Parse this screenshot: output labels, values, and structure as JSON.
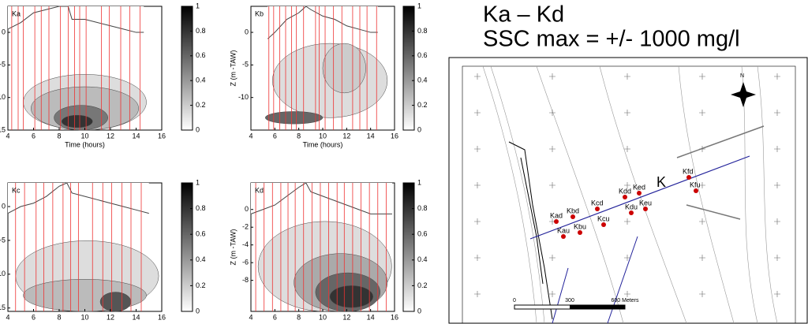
{
  "slide": {
    "title_lines": [
      "Ka – Kd",
      "SSC max = +/- 1000 mg/l"
    ]
  },
  "chart_data": [
    {
      "type": "contour",
      "label": "Ka",
      "xlabel": "Time (hours)",
      "xlim": [
        4,
        16
      ],
      "xticks": [
        4,
        6,
        8,
        10,
        12,
        14,
        16
      ],
      "ylim": [
        -15,
        4
      ],
      "yticks": [
        0,
        -5,
        {
          "value": -10,
          "label": "10"
        },
        {
          "value": -15,
          "label": "15"
        }
      ],
      "colorbar": {
        "lim": [
          0,
          1
        ],
        "ticks": [
          0,
          0.2,
          0.4,
          0.6,
          0.8,
          1
        ]
      },
      "profiles": [
        4.3,
        4.8,
        5.2,
        6.1,
        6.6,
        7.2,
        8.1,
        8.7,
        9.2,
        9.6,
        10.1,
        11.3,
        11.9,
        12.8,
        13.5,
        14.3
      ],
      "surface": {
        "x": [
          4,
          5,
          6,
          7,
          8,
          8.7,
          9,
          10,
          11,
          12,
          13,
          14,
          14.6
        ],
        "y": [
          0.5,
          1.5,
          3,
          3.5,
          4,
          4,
          2,
          2,
          1.5,
          1,
          0.5,
          0,
          0
        ]
      }
    },
    {
      "type": "contour",
      "label": "Kb",
      "ylabel": "Z (m -TAW)",
      "xlabel": "Time (hours)",
      "xlim": [
        4,
        16
      ],
      "xticks": [
        4,
        6,
        8,
        10,
        12,
        14,
        16
      ],
      "ylim": [
        -15,
        4
      ],
      "yticks": [
        0,
        -5,
        -10
      ],
      "colorbar": {
        "lim": [
          0,
          1
        ],
        "ticks": [
          0,
          0.2,
          0.4,
          0.6,
          0.8,
          1
        ]
      },
      "profiles": [
        5.5,
        5.9,
        6.4,
        6.9,
        7.4,
        7.8,
        8.4,
        9.4,
        9.7,
        10.2,
        10.9,
        11.6,
        12.5,
        13.1,
        13.7,
        14.5
      ],
      "surface": {
        "x": [
          5.4,
          6,
          7,
          8,
          8.6,
          9,
          10,
          11,
          12,
          13,
          14,
          14.6
        ],
        "y": [
          -1,
          0,
          2,
          3,
          4,
          3.5,
          2.5,
          2,
          1,
          0.5,
          0,
          0
        ]
      }
    },
    {
      "type": "contour",
      "label": "Kc",
      "xlim": [
        4,
        16
      ],
      "xticks": [
        4,
        6,
        8,
        10,
        12,
        14,
        16
      ],
      "ylim": [
        -15.5,
        3.5
      ],
      "yticks": [
        0,
        -5,
        {
          "value": -10,
          "label": "10"
        },
        {
          "value": -15,
          "label": "15"
        }
      ],
      "colorbar": {
        "lim": [
          0,
          1
        ],
        "ticks": [
          0,
          0.2,
          0.4,
          0.6,
          0.8,
          1
        ]
      },
      "profiles": [
        4.6,
        5.3,
        6.2,
        6.8,
        7.5,
        8.3,
        8.9,
        9.5,
        10.6,
        11.4,
        12.1,
        12.9,
        13.6,
        14.4
      ],
      "surface": {
        "x": [
          4,
          5,
          6,
          7,
          8,
          8.6,
          9,
          10,
          11,
          12,
          13,
          14,
          15
        ],
        "y": [
          -1,
          0,
          0.5,
          1.5,
          3,
          3.5,
          2,
          1.5,
          1,
          0.5,
          0,
          -0.5,
          -1
        ]
      }
    },
    {
      "type": "contour",
      "label": "Kd",
      "ylabel": "Z (m -TAW)",
      "xlim": [
        4,
        16
      ],
      "xticks": [
        4,
        6,
        8,
        10,
        12,
        14,
        16
      ],
      "ylim": [
        -11.5,
        3
      ],
      "yticks": [
        0,
        -2,
        -4,
        -6,
        -8
      ],
      "colorbar": {
        "lim": [
          0,
          1
        ],
        "ticks": [
          0,
          0.2,
          0.4,
          0.6,
          0.8,
          1
        ]
      },
      "profiles": [
        4.4,
        5.1,
        5.8,
        6.5,
        7.1,
        7.7,
        8.4,
        9.1,
        9.8,
        10.5,
        11.2,
        11.8,
        12.5,
        13.2,
        13.9,
        14.6,
        15.3
      ],
      "surface": {
        "x": [
          4,
          5,
          6,
          7,
          8,
          8.6,
          9,
          10,
          11,
          12,
          13,
          14,
          15,
          15.8
        ],
        "y": [
          -0.5,
          0,
          0.5,
          1.5,
          2.5,
          3,
          2,
          1.5,
          1,
          0.5,
          0,
          -0.5,
          -0.5,
          -0.5
        ]
      }
    }
  ],
  "map": {
    "stations": [
      "Kad",
      "Kau",
      "Kbd",
      "Kbu",
      "Kcd",
      "Kcu",
      "Kdd",
      "Kdu",
      "Ked",
      "Keu",
      "Kfd",
      "Kfu"
    ],
    "transect_label": "K",
    "north": "N",
    "scale_labels": [
      "0",
      "300",
      "600 Meters"
    ]
  }
}
